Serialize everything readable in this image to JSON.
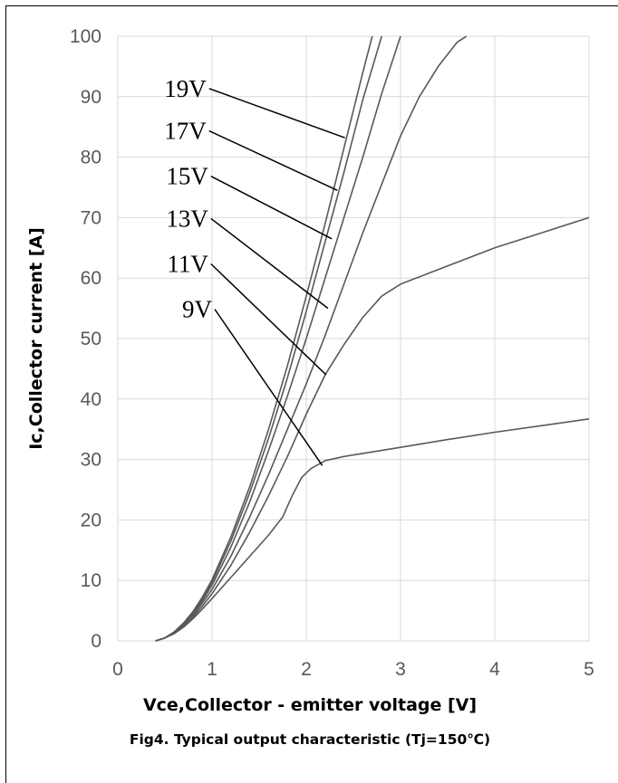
{
  "chart_data": {
    "type": "line",
    "title": "",
    "caption": "Fig4. Typical output characteristic (Tj=150℃)",
    "xlabel": "Vce,Collector - emitter voltage [V]",
    "ylabel": "Ic,Collector current [A]",
    "xlim": [
      0,
      5
    ],
    "ylim": [
      0,
      100
    ],
    "x_ticks": [
      0,
      1,
      2,
      3,
      4,
      5
    ],
    "y_ticks": [
      0,
      10,
      20,
      30,
      40,
      50,
      60,
      70,
      80,
      90,
      100
    ],
    "grid": "on",
    "line_color": "#595959",
    "grid_color": "#d9d9d9",
    "series": [
      {
        "name": "9V",
        "points": [
          [
            0.4,
            0
          ],
          [
            0.5,
            0.5
          ],
          [
            0.6,
            1.2
          ],
          [
            0.7,
            2.3
          ],
          [
            0.8,
            3.7
          ],
          [
            0.9,
            5.3
          ],
          [
            1.0,
            7.0
          ],
          [
            1.2,
            10.5
          ],
          [
            1.4,
            14.0
          ],
          [
            1.6,
            17.5
          ],
          [
            1.75,
            20.5
          ],
          [
            1.85,
            24.0
          ],
          [
            1.95,
            27.0
          ],
          [
            2.05,
            28.5
          ],
          [
            2.2,
            29.8
          ],
          [
            2.4,
            30.5
          ],
          [
            2.6,
            31.0
          ],
          [
            3.0,
            32.0
          ],
          [
            3.5,
            33.3
          ],
          [
            4.0,
            34.5
          ],
          [
            4.5,
            35.6
          ],
          [
            5.0,
            36.7
          ]
        ]
      },
      {
        "name": "11V",
        "points": [
          [
            0.4,
            0
          ],
          [
            0.5,
            0.5
          ],
          [
            0.6,
            1.3
          ],
          [
            0.7,
            2.5
          ],
          [
            0.8,
            4.0
          ],
          [
            0.9,
            5.8
          ],
          [
            1.0,
            7.8
          ],
          [
            1.2,
            12.5
          ],
          [
            1.4,
            18.0
          ],
          [
            1.6,
            24.0
          ],
          [
            1.8,
            30.5
          ],
          [
            2.0,
            37.5
          ],
          [
            2.2,
            44.0
          ],
          [
            2.4,
            49.0
          ],
          [
            2.6,
            53.5
          ],
          [
            2.8,
            57.0
          ],
          [
            3.0,
            59.0
          ],
          [
            3.5,
            62.0
          ],
          [
            4.0,
            65.0
          ],
          [
            4.5,
            67.5
          ],
          [
            5.0,
            70.0
          ]
        ]
      },
      {
        "name": "13V",
        "points": [
          [
            0.4,
            0
          ],
          [
            0.5,
            0.5
          ],
          [
            0.6,
            1.4
          ],
          [
            0.7,
            2.7
          ],
          [
            0.8,
            4.3
          ],
          [
            0.9,
            6.3
          ],
          [
            1.0,
            8.5
          ],
          [
            1.2,
            14.0
          ],
          [
            1.4,
            20.5
          ],
          [
            1.6,
            27.5
          ],
          [
            1.8,
            35.0
          ],
          [
            2.0,
            42.5
          ],
          [
            2.2,
            50.5
          ],
          [
            2.4,
            59.0
          ],
          [
            2.6,
            67.5
          ],
          [
            2.8,
            75.5
          ],
          [
            3.0,
            83.5
          ],
          [
            3.2,
            90.0
          ],
          [
            3.4,
            95.0
          ],
          [
            3.6,
            99.0
          ],
          [
            3.7,
            100
          ]
        ]
      },
      {
        "name": "15V",
        "points": [
          [
            0.4,
            0
          ],
          [
            0.5,
            0.5
          ],
          [
            0.6,
            1.4
          ],
          [
            0.7,
            2.8
          ],
          [
            0.8,
            4.5
          ],
          [
            0.9,
            6.7
          ],
          [
            1.0,
            9.2
          ],
          [
            1.2,
            15.5
          ],
          [
            1.4,
            23.0
          ],
          [
            1.6,
            31.5
          ],
          [
            1.8,
            40.5
          ],
          [
            2.0,
            50.0
          ],
          [
            2.2,
            60.0
          ],
          [
            2.4,
            70.0
          ],
          [
            2.6,
            80.0
          ],
          [
            2.8,
            90.5
          ],
          [
            3.0,
            100
          ]
        ]
      },
      {
        "name": "17V",
        "points": [
          [
            0.4,
            0
          ],
          [
            0.5,
            0.5
          ],
          [
            0.6,
            1.5
          ],
          [
            0.7,
            2.9
          ],
          [
            0.8,
            4.7
          ],
          [
            0.9,
            7.0
          ],
          [
            1.0,
            9.7
          ],
          [
            1.2,
            16.5
          ],
          [
            1.4,
            24.5
          ],
          [
            1.6,
            33.5
          ],
          [
            1.8,
            43.5
          ],
          [
            2.0,
            54.5
          ],
          [
            2.2,
            66.0
          ],
          [
            2.4,
            77.5
          ],
          [
            2.6,
            89.5
          ],
          [
            2.8,
            100
          ]
        ]
      },
      {
        "name": "19V",
        "points": [
          [
            0.4,
            0
          ],
          [
            0.5,
            0.5
          ],
          [
            0.6,
            1.5
          ],
          [
            0.7,
            3.0
          ],
          [
            0.8,
            4.9
          ],
          [
            0.9,
            7.3
          ],
          [
            1.0,
            10.1
          ],
          [
            1.2,
            17.2
          ],
          [
            1.4,
            25.5
          ],
          [
            1.6,
            35.0
          ],
          [
            1.8,
            45.5
          ],
          [
            2.0,
            57.0
          ],
          [
            2.2,
            69.0
          ],
          [
            2.4,
            81.5
          ],
          [
            2.6,
            94.0
          ],
          [
            2.7,
            100
          ]
        ]
      }
    ],
    "annotations": [
      {
        "label": "19V",
        "text_at": [
          0.94,
          90
        ],
        "arrow_to": [
          2.41,
          83.2
        ]
      },
      {
        "label": "17V",
        "text_at": [
          0.94,
          83
        ],
        "arrow_to": [
          2.33,
          74.5
        ]
      },
      {
        "label": "15V",
        "text_at": [
          0.96,
          75.5
        ],
        "arrow_to": [
          2.27,
          66.5
        ]
      },
      {
        "label": "13V",
        "text_at": [
          0.96,
          68.5
        ],
        "arrow_to": [
          2.23,
          55.0
        ]
      },
      {
        "label": "11V",
        "text_at": [
          0.96,
          61
        ],
        "arrow_to": [
          2.21,
          44.0
        ]
      },
      {
        "label": "9V",
        "text_at": [
          1.0,
          53.5
        ],
        "arrow_to": [
          2.17,
          29.0
        ]
      }
    ]
  }
}
